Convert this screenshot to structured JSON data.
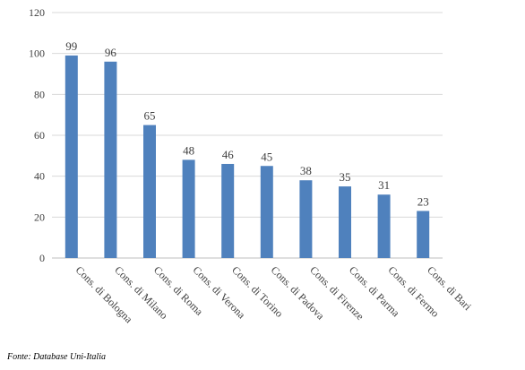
{
  "chart_data": {
    "type": "bar",
    "categories": [
      "Cons. di Bologna",
      "Cons. di Milano",
      "Cons. di Roma",
      "Cons. di Verona",
      "Cons. di Torino",
      "Cons. di Padova",
      "Cons. di Firenze",
      "Cons. di Parma",
      "Cons. di Fermo",
      "Cons. di Bari"
    ],
    "values": [
      99,
      96,
      65,
      48,
      46,
      45,
      38,
      35,
      31,
      23
    ],
    "title": "",
    "xlabel": "",
    "ylabel": "",
    "ylim": [
      0,
      120
    ],
    "yticks": [
      0,
      20,
      40,
      60,
      80,
      100,
      120
    ],
    "grid": true,
    "data_labels": true,
    "bar_color": "#4f81bd",
    "grid_color": "#d9d9d9"
  },
  "source_note": "Fonte: Database Uni-Italia"
}
